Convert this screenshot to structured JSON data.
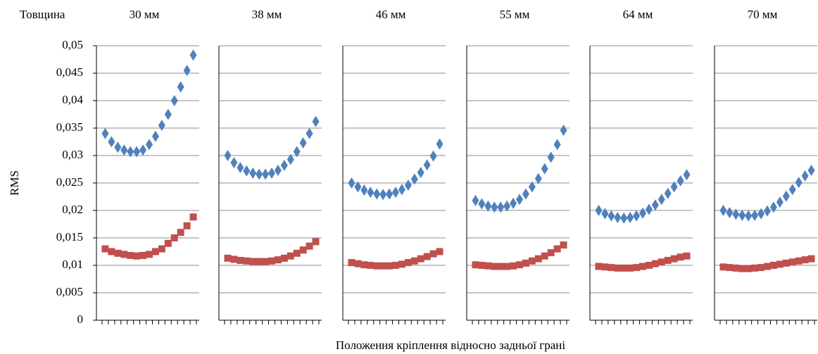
{
  "chart_data": {
    "type": "scatter",
    "header": "Товщина",
    "y_label": "RMS",
    "x_label": "Положення кріплення відносно задньої грані",
    "ylim": [
      0,
      0.05
    ],
    "yticks": [
      0,
      {
        "value": 0.005,
        "label": "0,005"
      },
      {
        "value": 0.01,
        "label": "0,01"
      },
      {
        "value": 0.015,
        "label": "0,015"
      },
      {
        "value": 0.02,
        "label": "0,02"
      },
      {
        "value": 0.025,
        "label": "0,025"
      },
      {
        "value": 0.03,
        "label": "0,03"
      },
      {
        "value": 0.035,
        "label": "0,035"
      },
      {
        "value": 0.04,
        "label": "0,04"
      },
      {
        "value": 0.045,
        "label": "0,045"
      },
      {
        "value": 0.05,
        "label": "0,05"
      }
    ],
    "grid": true,
    "panels": [
      {
        "title": "30 мм",
        "series": [
          {
            "color": "#4f81bd",
            "marker": "diamond",
            "values": [
              0.034,
              0.0325,
              0.0315,
              0.031,
              0.0307,
              0.0307,
              0.031,
              0.032,
              0.0335,
              0.0355,
              0.0375,
              0.04,
              0.0425,
              0.0455,
              0.0483
            ]
          },
          {
            "color": "#c0504d",
            "marker": "square",
            "values": [
              0.013,
              0.0125,
              0.0122,
              0.012,
              0.0118,
              0.0117,
              0.0118,
              0.012,
              0.0125,
              0.013,
              0.014,
              0.015,
              0.016,
              0.0172,
              0.0188
            ]
          }
        ]
      },
      {
        "title": "38 мм",
        "series": [
          {
            "color": "#4f81bd",
            "marker": "diamond",
            "values": [
              0.03,
              0.0287,
              0.0278,
              0.0272,
              0.0268,
              0.0266,
              0.0266,
              0.0268,
              0.0273,
              0.0282,
              0.0293,
              0.0307,
              0.0323,
              0.034,
              0.0362
            ]
          },
          {
            "color": "#c0504d",
            "marker": "square",
            "values": [
              0.0113,
              0.0111,
              0.0109,
              0.0108,
              0.0107,
              0.0107,
              0.0107,
              0.0108,
              0.011,
              0.0113,
              0.0117,
              0.0122,
              0.0128,
              0.0135,
              0.0143
            ]
          }
        ]
      },
      {
        "title": "46 мм",
        "series": [
          {
            "color": "#4f81bd",
            "marker": "diamond",
            "values": [
              0.025,
              0.0243,
              0.0237,
              0.0233,
              0.023,
              0.0229,
              0.023,
              0.0233,
              0.0238,
              0.0246,
              0.0257,
              0.0269,
              0.0283,
              0.0299,
              0.0321
            ]
          },
          {
            "color": "#c0504d",
            "marker": "square",
            "values": [
              0.0105,
              0.0103,
              0.0101,
              0.01,
              0.0099,
              0.0099,
              0.0099,
              0.01,
              0.0102,
              0.0105,
              0.0108,
              0.0112,
              0.0116,
              0.0121,
              0.0125
            ]
          }
        ]
      },
      {
        "title": "55 мм",
        "series": [
          {
            "color": "#4f81bd",
            "marker": "diamond",
            "values": [
              0.0218,
              0.0212,
              0.0208,
              0.0206,
              0.0206,
              0.0208,
              0.0213,
              0.022,
              0.023,
              0.0243,
              0.0258,
              0.0276,
              0.0297,
              0.032,
              0.0346
            ]
          },
          {
            "color": "#c0504d",
            "marker": "square",
            "values": [
              0.0101,
              0.01,
              0.0099,
              0.0098,
              0.0098,
              0.0098,
              0.0099,
              0.0101,
              0.0104,
              0.0108,
              0.0112,
              0.0117,
              0.0123,
              0.013,
              0.0137
            ]
          }
        ]
      },
      {
        "title": "64 мм",
        "series": [
          {
            "color": "#4f81bd",
            "marker": "diamond",
            "values": [
              0.02,
              0.0194,
              0.019,
              0.0187,
              0.0186,
              0.0187,
              0.019,
              0.0195,
              0.0202,
              0.021,
              0.022,
              0.0231,
              0.0243,
              0.0254,
              0.0265
            ]
          },
          {
            "color": "#c0504d",
            "marker": "square",
            "values": [
              0.0098,
              0.0097,
              0.0096,
              0.0095,
              0.0095,
              0.0095,
              0.0096,
              0.0098,
              0.01,
              0.0103,
              0.0106,
              0.0109,
              0.0112,
              0.0115,
              0.0117
            ]
          }
        ]
      },
      {
        "title": "70 мм",
        "series": [
          {
            "color": "#4f81bd",
            "marker": "diamond",
            "values": [
              0.02,
              0.0196,
              0.0193,
              0.0191,
              0.019,
              0.0191,
              0.0194,
              0.0199,
              0.0206,
              0.0215,
              0.0226,
              0.0238,
              0.0251,
              0.0263,
              0.0273
            ]
          },
          {
            "color": "#c0504d",
            "marker": "square",
            "values": [
              0.0097,
              0.0096,
              0.0095,
              0.0094,
              0.0094,
              0.0095,
              0.0096,
              0.0098,
              0.01,
              0.0102,
              0.0104,
              0.0106,
              0.0108,
              0.011,
              0.0112
            ]
          }
        ]
      }
    ]
  }
}
